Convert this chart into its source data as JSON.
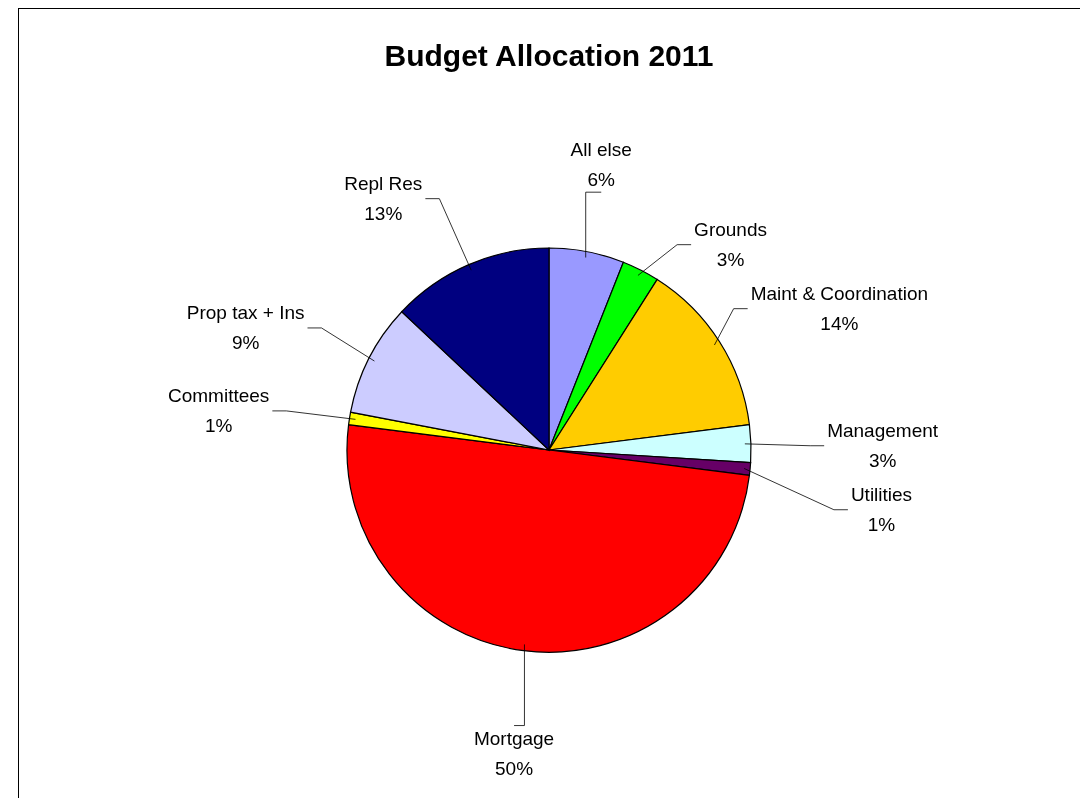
{
  "chart_data": {
    "type": "pie",
    "title": "Budget Allocation 2011",
    "categories": [
      "All else",
      "Grounds",
      "Maint & Coordination",
      "Management",
      "Utilities",
      "Mortgage",
      "Committees",
      "Prop tax + Ins",
      "Repl Res"
    ],
    "values": [
      6,
      3,
      14,
      3,
      1,
      50,
      1,
      9,
      13
    ],
    "colors": [
      "#9999ff",
      "#00ff00",
      "#ffcc00",
      "#ccffff",
      "#660066",
      "#ff0000",
      "#ffff00",
      "#ccccff",
      "#000080"
    ],
    "value_labels": [
      "6%",
      "3%",
      "14%",
      "3%",
      "1%",
      "50%",
      "1%",
      "9%",
      "13%"
    ]
  }
}
